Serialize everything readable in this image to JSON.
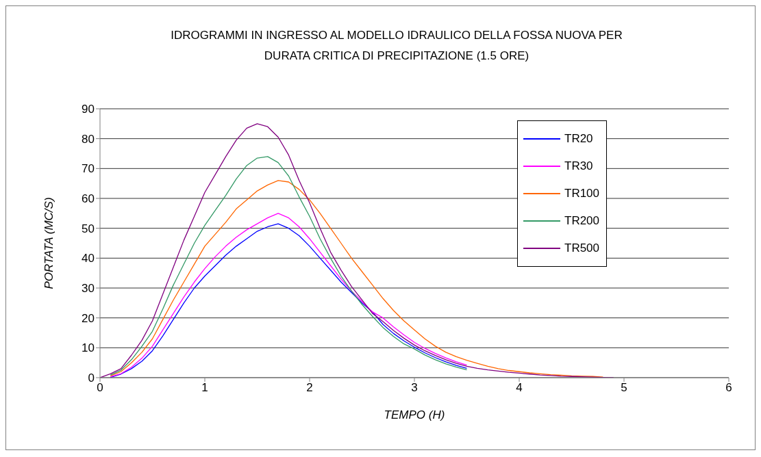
{
  "chart_data": {
    "type": "line",
    "title": "IDROGRAMMI IN INGRESSO AL MODELLO IDRAULICO DELLA FOSSA NUOVA  PER DURATA CRITICA DI PRECIPITAZIONE (1.5 ORE)",
    "xlabel": "TEMPO (H)",
    "ylabel": "PORTATA (MC/S)",
    "x": [
      0,
      0.1,
      0.2,
      0.3,
      0.4,
      0.5,
      0.6,
      0.7,
      0.8,
      0.9,
      1.0,
      1.1,
      1.2,
      1.3,
      1.4,
      1.5,
      1.6,
      1.7,
      1.8,
      1.9,
      2.0,
      2.1,
      2.2,
      2.3,
      2.4,
      2.5,
      2.6,
      2.7,
      2.8,
      2.9,
      3.0,
      3.1,
      3.2,
      3.3,
      3.4,
      3.5,
      3.6,
      3.7,
      3.8,
      3.9,
      4.0,
      4.1,
      4.2,
      4.3,
      4.4,
      4.5,
      4.6,
      4.7,
      4.8,
      4.9
    ],
    "series": [
      {
        "name": "TR20",
        "color": "#0000ff",
        "values": [
          null,
          0.1,
          1.2,
          3,
          5.5,
          9,
          14,
          19.5,
          25,
          30,
          34,
          37.5,
          41,
          44,
          46.5,
          49,
          50.5,
          51.5,
          50,
          47.5,
          44,
          40,
          36,
          32,
          28.5,
          25,
          22,
          17.8,
          14.8,
          12.3,
          10.2,
          8.3,
          6.7,
          5.3,
          4.1,
          3.1,
          null,
          null,
          null,
          null,
          null,
          null,
          null,
          null,
          null,
          null,
          null,
          null,
          null,
          null
        ]
      },
      {
        "name": "TR30",
        "color": "#ff00ff",
        "values": [
          null,
          0.3,
          1.3,
          3.5,
          6.5,
          10.5,
          16,
          21.5,
          27,
          32,
          36.5,
          40.5,
          44,
          47,
          49.5,
          51.5,
          53.5,
          55,
          53.5,
          50.5,
          46.5,
          42,
          37.5,
          33,
          29,
          25.5,
          22,
          20,
          17,
          14.3,
          11.8,
          9.8,
          8.1,
          6.6,
          5.3,
          4.2,
          null,
          null,
          null,
          null,
          null,
          null,
          null,
          null,
          null,
          null,
          null,
          null,
          null,
          null
        ]
      },
      {
        "name": "TR100",
        "color": "#ff6600",
        "values": [
          null,
          0.6,
          2,
          5,
          8.5,
          13,
          19.5,
          26,
          32,
          38,
          44,
          48,
          52,
          56.5,
          59.5,
          62.5,
          64.5,
          66,
          65.5,
          63,
          59.5,
          55,
          50,
          45,
          40,
          35.5,
          31,
          26.5,
          22.5,
          19,
          16,
          13,
          10.5,
          8.5,
          7,
          5.8,
          4.8,
          3.8,
          3,
          2.4,
          2,
          1.6,
          1.3,
          1,
          0.8,
          0.6,
          0.5,
          0.4,
          0.2,
          null
        ]
      },
      {
        "name": "TR200",
        "color": "#339966",
        "values": [
          null,
          0.9,
          2.5,
          6,
          10.5,
          15.5,
          23,
          31,
          38,
          45,
          51,
          56,
          61,
          66.5,
          71,
          73.5,
          74,
          72,
          67.5,
          60.5,
          54,
          46.5,
          40,
          34,
          29,
          24.5,
          20.5,
          16.8,
          13.8,
          11.3,
          9.6,
          7.6,
          6,
          4.6,
          3.5,
          2.6,
          null,
          null,
          null,
          null,
          null,
          null,
          null,
          null,
          null,
          null,
          null,
          null,
          null,
          null
        ]
      },
      {
        "name": "TR500",
        "color": "#800080",
        "values": [
          0,
          1.3,
          3,
          7.5,
          12.5,
          19,
          28,
          37,
          46,
          54,
          62,
          68,
          74,
          79.5,
          83.5,
          85,
          84,
          80.5,
          74.5,
          66,
          58.5,
          50,
          42,
          36,
          30.5,
          26,
          21.5,
          18.8,
          15.8,
          13.2,
          10.9,
          9,
          7.4,
          6,
          4.8,
          3.8,
          3.1,
          2.6,
          2.2,
          1.8,
          1.5,
          1.2,
          0.9,
          0.7,
          0.5,
          0.4,
          0.3,
          0.2,
          0.1,
          0
        ]
      }
    ],
    "xlim": [
      0,
      6
    ],
    "xticks": [
      0,
      1,
      2,
      3,
      4,
      5,
      6
    ],
    "ylim": [
      0,
      90
    ],
    "yticks": [
      0,
      10,
      20,
      30,
      40,
      50,
      60,
      70,
      80,
      90
    ],
    "grid": "y",
    "legend": "top right",
    "marker": "none",
    "line_style": "solid"
  }
}
